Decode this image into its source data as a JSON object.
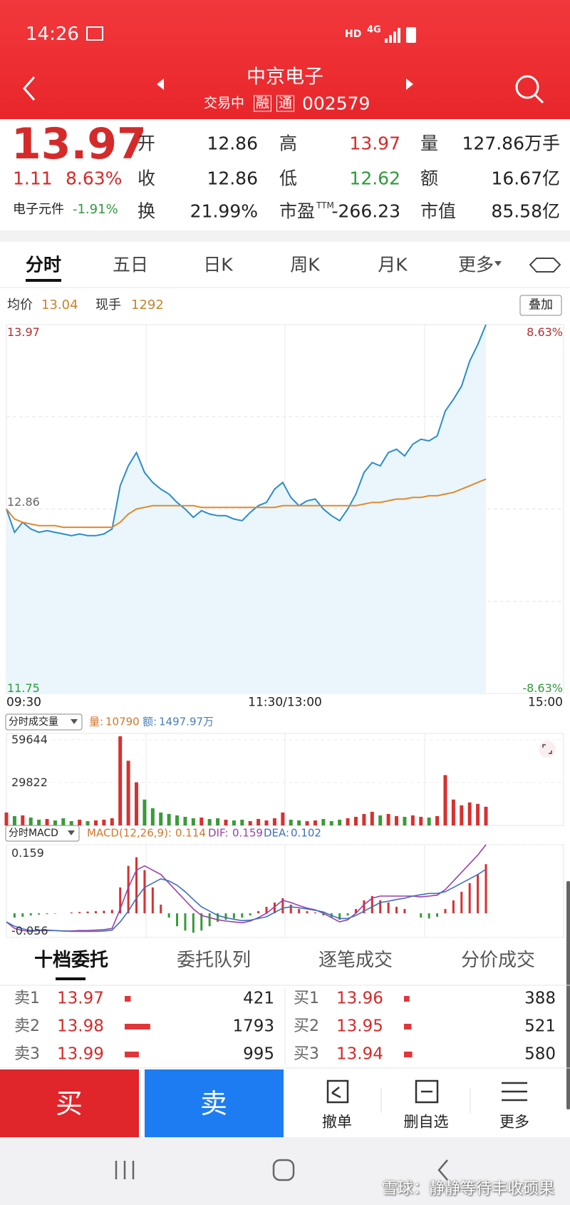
{
  "status": {
    "time": "14:26",
    "hd": "HD",
    "network": "4G"
  },
  "header": {
    "name": "中京电子",
    "status": "交易中",
    "tag1": "融",
    "tag2": "通",
    "code": "002579"
  },
  "quote": {
    "price": "13.97",
    "change": "1.11",
    "change_pct": "8.63%",
    "sector": "电子元件",
    "sector_change": "-1.91%",
    "up_color": "#d42a2a",
    "down_color": "#2f9a3c",
    "fields": [
      [
        {
          "label": "开",
          "value": "12.86"
        },
        {
          "label": "高",
          "value": "13.97",
          "color": "#d42a2a"
        },
        {
          "label": "量",
          "value": "127.86万手"
        }
      ],
      [
        {
          "label": "收",
          "value": "12.86"
        },
        {
          "label": "低",
          "value": "12.62",
          "color": "#2f9a3c"
        },
        {
          "label": "额",
          "value": "16.67亿"
        }
      ],
      [
        {
          "label": "换",
          "value": "21.99%"
        },
        {
          "label": "市盈",
          "label_sup": "TTM",
          "value": "-266.23"
        },
        {
          "label": "市值",
          "value": "85.58亿"
        }
      ]
    ]
  },
  "tabs": [
    "分时",
    "五日",
    "日K",
    "周K",
    "月K",
    "更多"
  ],
  "intraday": {
    "avg_label": "均价",
    "avg": "13.04",
    "current_label": "现手",
    "current": "1292",
    "overlay": "叠加",
    "ylim": [
      11.75,
      13.97
    ],
    "yticks": [
      13.97,
      12.86,
      11.75
    ],
    "pct_top": "8.63%",
    "pct_bottom": "-8.63%",
    "times": [
      "09:30",
      "11:30/13:00",
      "15:00"
    ],
    "prices": [
      12.86,
      12.72,
      12.78,
      12.74,
      12.72,
      12.73,
      12.72,
      12.71,
      12.7,
      12.71,
      12.7,
      12.7,
      12.71,
      12.74,
      13.0,
      13.12,
      13.2,
      13.08,
      13.02,
      12.98,
      12.95,
      12.9,
      12.86,
      12.81,
      12.85,
      12.83,
      12.82,
      12.82,
      12.8,
      12.79,
      12.84,
      12.88,
      12.9,
      12.98,
      13.02,
      12.93,
      12.88,
      12.91,
      12.92,
      12.86,
      12.82,
      12.79,
      12.86,
      12.95,
      13.08,
      13.14,
      13.12,
      13.2,
      13.22,
      13.18,
      13.25,
      13.28,
      13.27,
      13.3,
      13.45,
      13.52,
      13.6,
      13.75,
      13.85,
      13.97
    ],
    "avg_prices": [
      12.86,
      12.8,
      12.78,
      12.77,
      12.76,
      12.76,
      12.76,
      12.75,
      12.75,
      12.75,
      12.75,
      12.75,
      12.75,
      12.75,
      12.78,
      12.83,
      12.86,
      12.87,
      12.88,
      12.88,
      12.88,
      12.88,
      12.88,
      12.88,
      12.87,
      12.87,
      12.87,
      12.87,
      12.87,
      12.87,
      12.87,
      12.87,
      12.87,
      12.87,
      12.88,
      12.88,
      12.88,
      12.88,
      12.88,
      12.88,
      12.88,
      12.88,
      12.88,
      12.88,
      12.89,
      12.9,
      12.9,
      12.91,
      12.92,
      12.92,
      12.93,
      12.93,
      12.94,
      12.94,
      12.95,
      12.96,
      12.98,
      13.0,
      13.02,
      13.04
    ],
    "price_color": "#2b8ccc",
    "avg_color": "#e08a2a",
    "fill_color": "#eaf6fc"
  },
  "volume": {
    "selector": "分时成交量",
    "vol_label": "量:",
    "vol": "10790",
    "amt_label": "额:",
    "amt": "1497.97万",
    "ylim": [
      0,
      64000
    ],
    "yticks": [
      59644,
      29822
    ],
    "values": [
      9000,
      6500,
      7000,
      5500,
      4000,
      4500,
      3500,
      5000,
      3000,
      4000,
      3000,
      3500,
      4000,
      5000,
      62000,
      45000,
      30000,
      18000,
      12000,
      9000,
      8000,
      7000,
      6000,
      5000,
      5500,
      4500,
      5000,
      4000,
      3500,
      4000,
      3000,
      4500,
      3500,
      5000,
      9000,
      4000,
      3500,
      3000,
      3500,
      4500,
      3000,
      4000,
      5000,
      6000,
      8000,
      9500,
      7000,
      8000,
      6500,
      6000,
      7000,
      6000,
      5500,
      6500,
      35000,
      18000,
      14000,
      16000,
      15000,
      13000
    ]
  },
  "macd": {
    "selector": "分时MACD",
    "params": "MACD(12,26,9):",
    "macd": "0.114",
    "dif_label": "DIF:",
    "dif": "0.159",
    "dea_label": "DEA:",
    "dea": "0.102",
    "ylim": [
      -0.056,
      0.159
    ],
    "yticks": [
      0.159,
      -0.056
    ],
    "hist": [
      0.0,
      -0.01,
      -0.008,
      -0.005,
      -0.003,
      -0.002,
      -0.001,
      0.0,
      0.002,
      0.003,
      0.004,
      0.005,
      0.006,
      0.008,
      0.06,
      0.11,
      0.13,
      0.1,
      0.06,
      0.02,
      -0.01,
      -0.03,
      -0.04,
      -0.045,
      -0.04,
      -0.03,
      -0.02,
      -0.015,
      -0.012,
      -0.01,
      -0.005,
      0.005,
      0.015,
      0.025,
      0.035,
      0.02,
      0.01,
      0.005,
      0.002,
      -0.005,
      -0.01,
      -0.015,
      -0.005,
      0.01,
      0.03,
      0.04,
      0.03,
      0.025,
      0.015,
      0.01,
      0.0,
      -0.01,
      -0.012,
      -0.008,
      0.01,
      0.03,
      0.05,
      0.07,
      0.09,
      0.114
    ],
    "dif_values": [
      -0.02,
      -0.035,
      -0.04,
      -0.042,
      -0.04,
      -0.04,
      -0.04,
      -0.041,
      -0.041,
      -0.04,
      -0.04,
      -0.039,
      -0.038,
      -0.035,
      0.01,
      0.06,
      0.1,
      0.11,
      0.1,
      0.09,
      0.07,
      0.05,
      0.03,
      0.01,
      -0.005,
      -0.01,
      -0.015,
      -0.018,
      -0.02,
      -0.022,
      -0.018,
      -0.01,
      0.0,
      0.015,
      0.03,
      0.025,
      0.018,
      0.012,
      0.008,
      0.0,
      -0.01,
      -0.02,
      -0.015,
      0.0,
      0.02,
      0.035,
      0.04,
      0.04,
      0.04,
      0.04,
      0.04,
      0.038,
      0.04,
      0.042,
      0.055,
      0.075,
      0.095,
      0.115,
      0.135,
      0.159
    ],
    "dea_values": [
      -0.02,
      -0.03,
      -0.036,
      -0.04,
      -0.039,
      -0.039,
      -0.04,
      -0.041,
      -0.042,
      -0.042,
      -0.042,
      -0.042,
      -0.041,
      -0.039,
      -0.02,
      0.005,
      0.035,
      0.06,
      0.07,
      0.08,
      0.075,
      0.065,
      0.05,
      0.032,
      0.015,
      0.005,
      -0.005,
      -0.01,
      -0.014,
      -0.017,
      -0.016,
      -0.012,
      -0.008,
      0.002,
      0.012,
      0.015,
      0.013,
      0.01,
      0.007,
      0.003,
      -0.005,
      -0.012,
      -0.012,
      -0.005,
      0.005,
      0.015,
      0.025,
      0.028,
      0.032,
      0.035,
      0.04,
      0.043,
      0.046,
      0.046,
      0.05,
      0.06,
      0.07,
      0.08,
      0.09,
      0.102
    ],
    "dif_color": "#9b3fa8",
    "dea_color": "#3f6fc0"
  },
  "order_tabs": [
    "十档委托",
    "委托队列",
    "逐笔成交",
    "分价成交"
  ],
  "orders": {
    "asks": [
      {
        "label": "卖1",
        "price": "13.97",
        "qty": 421
      },
      {
        "label": "卖2",
        "price": "13.98",
        "qty": 1793
      },
      {
        "label": "卖3",
        "price": "13.99",
        "qty": 995
      }
    ],
    "bids": [
      {
        "label": "买1",
        "price": "13.96",
        "qty": 388
      },
      {
        "label": "买2",
        "price": "13.95",
        "qty": 521
      },
      {
        "label": "买3",
        "price": "13.94",
        "qty": 580
      }
    ]
  },
  "buttons": {
    "buy": "买",
    "sell": "卖",
    "actions": [
      "撤单",
      "删自选",
      "更多"
    ]
  },
  "watermark": "雪球：静静等待丰收硕果"
}
